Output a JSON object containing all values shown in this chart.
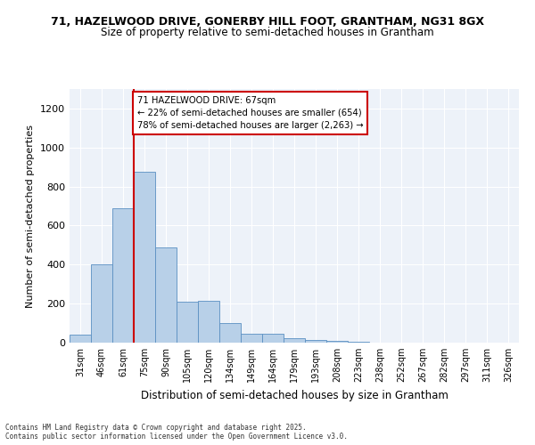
{
  "title_line1": "71, HAZELWOOD DRIVE, GONERBY HILL FOOT, GRANTHAM, NG31 8GX",
  "title_line2": "Size of property relative to semi-detached houses in Grantham",
  "xlabel": "Distribution of semi-detached houses by size in Grantham",
  "ylabel": "Number of semi-detached properties",
  "bins": [
    "31sqm",
    "46sqm",
    "61sqm",
    "75sqm",
    "90sqm",
    "105sqm",
    "120sqm",
    "134sqm",
    "149sqm",
    "164sqm",
    "179sqm",
    "193sqm",
    "208sqm",
    "223sqm",
    "238sqm",
    "252sqm",
    "267sqm",
    "282sqm",
    "297sqm",
    "311sqm",
    "326sqm"
  ],
  "bar_values": [
    40,
    400,
    690,
    875,
    490,
    210,
    215,
    100,
    45,
    45,
    25,
    15,
    10,
    5,
    2,
    1,
    1,
    0,
    0,
    0,
    0
  ],
  "bar_color": "#b8d0e8",
  "bar_edge_color": "#5a8fc2",
  "vline_color": "#cc0000",
  "vline_x_index": 2,
  "annotation_title": "71 HAZELWOOD DRIVE: 67sqm",
  "annotation_line1": "← 22% of semi-detached houses are smaller (654)",
  "annotation_line2": "78% of semi-detached houses are larger (2,263) →",
  "annotation_box_color": "#ffffff",
  "annotation_box_edge": "#cc0000",
  "ylim": [
    0,
    1300
  ],
  "yticks": [
    0,
    200,
    400,
    600,
    800,
    1000,
    1200
  ],
  "background_color": "#edf2f9",
  "grid_color": "#ffffff",
  "footer_line1": "Contains HM Land Registry data © Crown copyright and database right 2025.",
  "footer_line2": "Contains public sector information licensed under the Open Government Licence v3.0."
}
